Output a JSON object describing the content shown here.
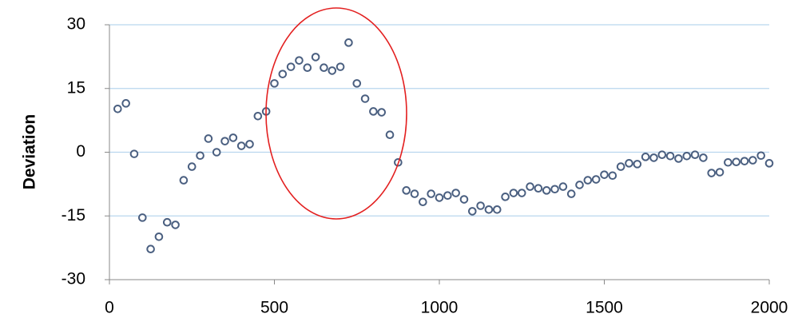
{
  "chart_data": {
    "type": "scatter",
    "y_label": "Deviation",
    "x": [
      25,
      50,
      75,
      100,
      125,
      150,
      175,
      200,
      225,
      250,
      275,
      300,
      325,
      350,
      375,
      400,
      425,
      450,
      475,
      500,
      525,
      550,
      575,
      600,
      625,
      650,
      675,
      700,
      725,
      750,
      775,
      800,
      825,
      850,
      875,
      900,
      925,
      950,
      975,
      1000,
      1025,
      1050,
      1075,
      1100,
      1125,
      1150,
      1175,
      1200,
      1225,
      1250,
      1275,
      1300,
      1325,
      1350,
      1375,
      1400,
      1425,
      1450,
      1475,
      1500,
      1525,
      1550,
      1575,
      1600,
      1625,
      1650,
      1675,
      1700,
      1725,
      1750,
      1775,
      1800,
      1825,
      1850,
      1875,
      1900,
      1925,
      1950,
      1975,
      2000
    ],
    "values": [
      10.2,
      11.5,
      -0.4,
      -15.4,
      -22.8,
      -19.9,
      -16.5,
      -17.1,
      -6.6,
      -3.4,
      -0.8,
      3.2,
      0,
      2.6,
      3.4,
      1.5,
      1.9,
      8.5,
      9.6,
      16.2,
      18.4,
      20.1,
      21.6,
      19.9,
      22.4,
      19.9,
      19.2,
      20.1,
      25.8,
      16.2,
      12.6,
      9.6,
      9.4,
      4.1,
      -2.4,
      -9.0,
      -9.8,
      -11.7,
      -9.8,
      -10.7,
      -10.2,
      -9.6,
      -11.1,
      -13.9,
      -12.6,
      -13.5,
      -13.5,
      -10.5,
      -9.6,
      -9.6,
      -8.1,
      -8.5,
      -9.0,
      -8.7,
      -8.1,
      -9.8,
      -7.7,
      -6.6,
      -6.4,
      -5.3,
      -5.5,
      -3.4,
      -2.6,
      -2.8,
      -1.1,
      -1.3,
      -0.6,
      -0.9,
      -1.5,
      -0.9,
      -0.6,
      -1.3,
      -4.9,
      -4.7,
      -2.4,
      -2.3,
      -2.1,
      -1.9,
      -0.8,
      -2.6
    ],
    "color": "#4a5f80",
    "xlim": [
      0,
      2000
    ],
    "xticks": [
      0,
      500,
      1000,
      1500,
      2000
    ],
    "ylim": [
      -30,
      30
    ],
    "yticks": [
      -30,
      -15,
      0,
      15,
      30
    ],
    "grid": true
  }
}
